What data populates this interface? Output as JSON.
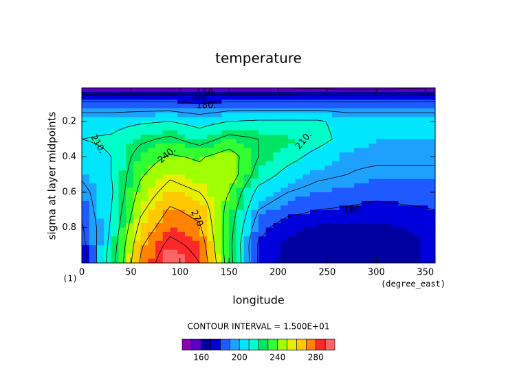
{
  "chart_data": {
    "type": "contour",
    "title": "temperature",
    "x_label": "longitude",
    "x_unit": "(degree_east)",
    "y_label": "sigma at layer midpoints",
    "panel_label": "(1)",
    "contour_interval_text": "CONTOUR INTERVAL = 1.500E+01",
    "xlim": [
      0,
      360
    ],
    "xticks": [
      0,
      50,
      100,
      150,
      200,
      250,
      300,
      350
    ],
    "ylim": [
      1.0,
      0.01
    ],
    "yticks": [
      0.2,
      0.4,
      0.6,
      0.8
    ],
    "x": [
      0,
      30,
      60,
      90,
      120,
      150,
      180,
      210,
      240,
      270,
      300,
      330,
      360
    ],
    "y": [
      0.01,
      0.1,
      0.2,
      0.3,
      0.4,
      0.5,
      0.6,
      0.7,
      0.8,
      0.9,
      1.0
    ],
    "z": [
      [
        150,
        150,
        150,
        150,
        152,
        150,
        150,
        150,
        148,
        145,
        145,
        148,
        150
      ],
      [
        185,
        185,
        185,
        185,
        180,
        185,
        185,
        185,
        185,
        185,
        185,
        185,
        185
      ],
      [
        205,
        205,
        208,
        210,
        205,
        210,
        212,
        212,
        212,
        205,
        205,
        205,
        205
      ],
      [
        210,
        212,
        222,
        228,
        218,
        230,
        225,
        222,
        215,
        205,
        200,
        200,
        200
      ],
      [
        205,
        210,
        232,
        242,
        238,
        248,
        225,
        215,
        205,
        198,
        198,
        198,
        198
      ],
      [
        198,
        210,
        238,
        252,
        245,
        250,
        218,
        205,
        198,
        195,
        192,
        192,
        192
      ],
      [
        190,
        208,
        245,
        262,
        255,
        240,
        205,
        195,
        190,
        188,
        185,
        185,
        185
      ],
      [
        185,
        210,
        252,
        272,
        265,
        235,
        195,
        185,
        180,
        178,
        175,
        178,
        180
      ],
      [
        178,
        212,
        260,
        280,
        272,
        232,
        185,
        172,
        168,
        168,
        168,
        170,
        172
      ],
      [
        175,
        215,
        268,
        290,
        280,
        230,
        178,
        168,
        165,
        165,
        165,
        168,
        172
      ],
      [
        172,
        218,
        272,
        298,
        285,
        232,
        178,
        168,
        165,
        165,
        165,
        168,
        172
      ]
    ],
    "contour_levels": [
      150,
      165,
      180,
      195,
      210,
      225,
      240,
      255,
      270,
      285
    ],
    "contour_labels": [
      "150.",
      "180.",
      "210.",
      "210.",
      "240.",
      "270.",
      "180."
    ],
    "colorbar": {
      "levels": [
        140,
        150,
        160,
        170,
        180,
        190,
        200,
        210,
        220,
        230,
        240,
        250,
        260,
        270,
        280,
        290,
        300
      ],
      "colors": [
        "#8c00b4",
        "#5a00c8",
        "#0000a0",
        "#0000dc",
        "#1e5aff",
        "#1ea0ff",
        "#00e6ff",
        "#00ffc8",
        "#00e664",
        "#32ff32",
        "#a0ff00",
        "#e6f000",
        "#ffc800",
        "#ff8200",
        "#ff2828",
        "#ff6464"
      ],
      "ticks": [
        160,
        200,
        240,
        280
      ]
    }
  }
}
